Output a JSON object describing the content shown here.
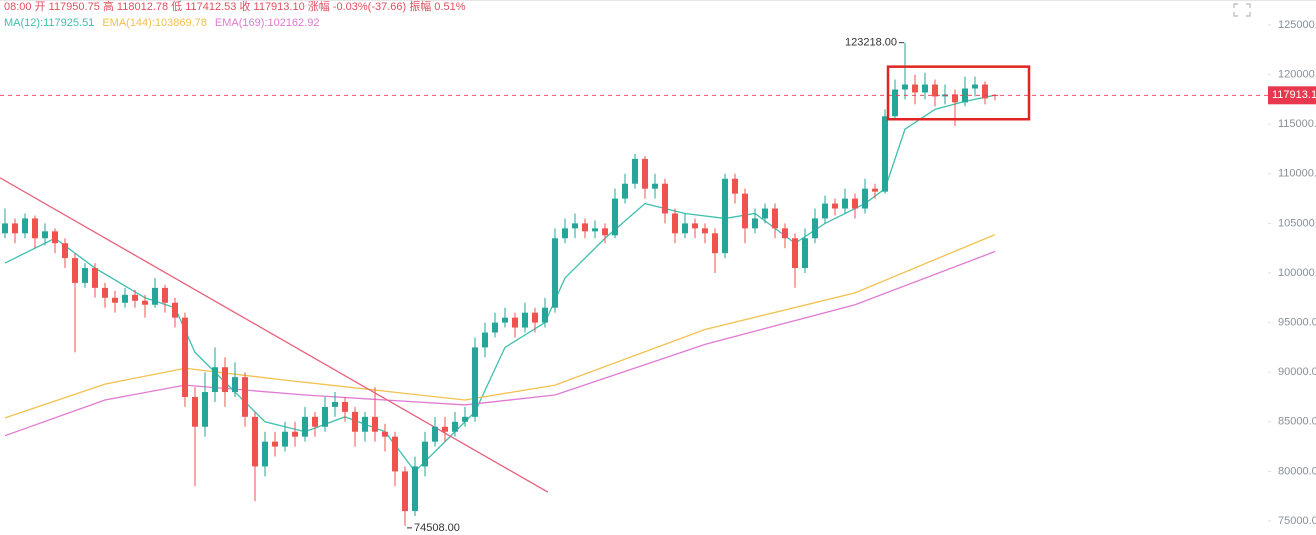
{
  "chart_data": {
    "type": "candlestick",
    "subtitle": "08:00 开 117950.75 高 118012.78 低 117412.53 收 117913.10 涨幅 -0.03%(-37.66) 振幅 0.51%",
    "up_color": "#26a69a",
    "down_color": "#ef5350",
    "ylim": [
      74300,
      126600
    ],
    "yticks": [
      {
        "value": 75000,
        "label": "75000.00"
      },
      {
        "value": 80000,
        "label": "80000.00"
      },
      {
        "value": 85000,
        "label": "85000.00"
      },
      {
        "value": 90000,
        "label": "90000.00"
      },
      {
        "value": 95000,
        "label": "95000.00"
      },
      {
        "value": 100000,
        "label": "100000.00"
      },
      {
        "value": 105000,
        "label": "105000.00"
      },
      {
        "value": 110000,
        "label": "110000.00"
      },
      {
        "value": 115000,
        "label": "115000.00"
      },
      {
        "value": 120000,
        "label": "120000.00"
      },
      {
        "value": 125000,
        "label": "125000.00"
      }
    ],
    "open": [
      104000,
      105000,
      104000,
      105500,
      103500,
      104200,
      103000,
      101500,
      99000,
      100500,
      98500,
      97500,
      97000,
      97800,
      97200,
      96800,
      98500,
      97000,
      95500,
      87500,
      84500,
      88000,
      90500,
      88000,
      89500,
      85500,
      80500,
      83000,
      82500,
      84000,
      83500,
      85500,
      84500,
      86500,
      87000,
      86000,
      84000,
      85500,
      84000,
      83500,
      80000,
      76000,
      80500,
      83000,
      84500,
      84000,
      85000,
      85500,
      92500,
      94000,
      95000,
      95500,
      94500,
      96000,
      95000,
      96500,
      103500,
      104500,
      105000,
      104200,
      104500,
      103800,
      107500,
      109000,
      111500,
      108500,
      109000,
      106000,
      104000,
      105000,
      104500,
      104000,
      102000,
      109500,
      108000,
      104500,
      105500,
      106500,
      104500,
      103500,
      100500,
      103500,
      105500,
      107000,
      106500,
      107500,
      106500,
      108500,
      108200,
      115800,
      118500,
      119000,
      118200,
      119000,
      117800,
      118000,
      117200,
      118600,
      119000,
      117950.75
    ],
    "high": [
      106500,
      105500,
      106000,
      105800,
      105000,
      104500,
      103500,
      102000,
      101000,
      101000,
      99000,
      98200,
      98500,
      98300,
      97800,
      99500,
      98800,
      97500,
      96000,
      88500,
      90000,
      92500,
      91500,
      91000,
      90000,
      86000,
      84000,
      84000,
      85000,
      85000,
      86500,
      86000,
      87500,
      88000,
      87500,
      86500,
      86000,
      88500,
      84800,
      84000,
      80500,
      81500,
      84000,
      85500,
      85500,
      86000,
      86500,
      93500,
      95000,
      96000,
      96500,
      96000,
      97000,
      96500,
      97500,
      104500,
      105500,
      106000,
      105500,
      105300,
      105000,
      108500,
      110000,
      112000,
      111800,
      110000,
      109500,
      106500,
      106000,
      105500,
      105000,
      104500,
      110000,
      110000,
      108500,
      106500,
      107000,
      107000,
      105000,
      104000,
      104500,
      106500,
      107800,
      107500,
      108500,
      108000,
      109500,
      109000,
      116500,
      119500,
      123218,
      120000,
      120200,
      119500,
      119000,
      118500,
      119800,
      119800,
      119300,
      118012.78
    ],
    "low": [
      103500,
      103000,
      103500,
      102500,
      102800,
      102000,
      100500,
      92000,
      98500,
      97500,
      96500,
      96000,
      96500,
      96500,
      95500,
      96500,
      96000,
      94500,
      86500,
      78500,
      83500,
      87000,
      86500,
      87500,
      84500,
      77000,
      79500,
      81500,
      82000,
      82500,
      83000,
      83500,
      84000,
      85500,
      85000,
      82500,
      83000,
      83000,
      82000,
      78500,
      74508,
      75500,
      79500,
      82500,
      83000,
      83500,
      84500,
      85000,
      91500,
      93500,
      94500,
      93500,
      94000,
      94000,
      94500,
      96000,
      103000,
      103500,
      103500,
      103500,
      103000,
      103500,
      107000,
      108500,
      107500,
      107500,
      105000,
      103000,
      103500,
      103500,
      103000,
      100000,
      101500,
      107000,
      103000,
      104000,
      105000,
      103500,
      102500,
      98500,
      100000,
      103000,
      105000,
      105800,
      106000,
      105500,
      106000,
      107500,
      108000,
      115500,
      117500,
      117000,
      117500,
      116800,
      117000,
      114800,
      116800,
      117800,
      117000,
      117412.53
    ],
    "close": [
      105000,
      104000,
      105500,
      103500,
      104200,
      103000,
      101500,
      99000,
      100500,
      98500,
      97500,
      97000,
      97800,
      97200,
      96800,
      98500,
      97000,
      95500,
      87500,
      84500,
      88000,
      90500,
      88000,
      89500,
      85500,
      80500,
      83000,
      82500,
      84000,
      83500,
      85500,
      84500,
      86500,
      87000,
      86000,
      84000,
      85500,
      84000,
      83500,
      80000,
      76000,
      80500,
      83000,
      84500,
      84000,
      85000,
      85500,
      92500,
      94000,
      95000,
      95500,
      94500,
      96000,
      95000,
      96500,
      103500,
      104500,
      105000,
      104200,
      104500,
      103800,
      107500,
      109000,
      111500,
      108500,
      109000,
      106000,
      104000,
      105000,
      104500,
      104000,
      102000,
      109500,
      108000,
      104500,
      105500,
      106500,
      104500,
      103500,
      100500,
      103500,
      105500,
      107000,
      106500,
      107500,
      106500,
      108500,
      108200,
      115800,
      118500,
      119000,
      118200,
      119000,
      117800,
      118000,
      117200,
      118600,
      119000,
      117600,
      117913.1
    ],
    "series": [
      {
        "name": "MA(12):117925.51",
        "color": "#3fbfae",
        "x": [
          0,
          5,
          9,
          14,
          17,
          19,
          22,
          26,
          30,
          34,
          38,
          41,
          44,
          47,
          50,
          54,
          56,
          60,
          64,
          68,
          72,
          75,
          79,
          82,
          86,
          88,
          90,
          93,
          96,
          99
        ],
        "values": [
          101000,
          103500,
          100500,
          97500,
          96500,
          92000,
          89000,
          85000,
          84000,
          85500,
          84000,
          80000,
          83000,
          86000,
          92500,
          95000,
          99500,
          103500,
          107000,
          106000,
          105500,
          106000,
          103000,
          105000,
          107000,
          108500,
          114500,
          116500,
          117300,
          117925.51
        ]
      },
      {
        "name": "EMA(144):103869.78",
        "color": "#f2c14e",
        "x": [
          0,
          10,
          18,
          28,
          46,
          55,
          70,
          85,
          99
        ],
        "values": [
          85400,
          88800,
          90400,
          89200,
          87200,
          88700,
          94300,
          98000,
          103869.78
        ]
      },
      {
        "name": "EMA(169):102162.92",
        "color": "#e07ad3",
        "x": [
          0,
          10,
          18,
          30,
          46,
          55,
          70,
          85,
          99
        ],
        "values": [
          83600,
          87200,
          88700,
          87700,
          86700,
          87700,
          92800,
          96800,
          102162.92
        ]
      }
    ],
    "trendline": {
      "color": "#e8607a",
      "x": [
        -0.5,
        54.3
      ],
      "values": [
        109600,
        77900
      ]
    },
    "highlight_box": {
      "color": "#e02424",
      "x": [
        88.3,
        102.4
      ],
      "y": [
        115500,
        120800
      ]
    },
    "annotations": [
      {
        "text": "123218.00",
        "index": 90,
        "value": 123218
      },
      {
        "text": "74508.00",
        "index": 40,
        "value": 74508
      }
    ],
    "last_price": {
      "value": 117913.1,
      "label": "117913.10",
      "color": "#e8384f"
    }
  }
}
